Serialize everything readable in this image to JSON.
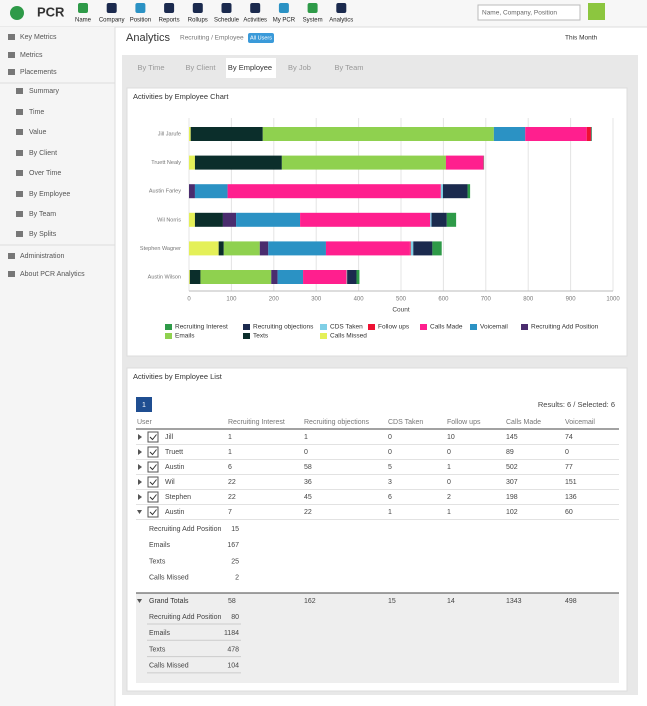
{
  "nav": {
    "logo": "PCR",
    "items": [
      "Name",
      "Company",
      "Position",
      "Reports",
      "Rollups",
      "Schedule",
      "Activities",
      "My PCR",
      "System",
      "Analytics"
    ],
    "search_placeholder": "Name, Company, Position"
  },
  "sidebar": {
    "items": [
      "Key Metrics",
      "Metrics",
      "Placements",
      "Summary",
      "Time",
      "Value",
      "By Client",
      "Over Time",
      "By Employee",
      "By Team",
      "By Splits",
      "Administration",
      "About PCR Analytics"
    ]
  },
  "header": {
    "title": "Analytics",
    "breadcrumb": "Recruiting / Employee",
    "badge": "All Users",
    "period": "This Month"
  },
  "tabs": [
    "By Time",
    "By Client",
    "By Employee",
    "By Job",
    "By Team"
  ],
  "chart_data": {
    "type": "bar",
    "orientation": "horizontal",
    "stacked": true,
    "title": "Activities by Employee Chart",
    "xlabel": "Count",
    "categories": [
      "Jill Jarufe",
      "Truett Nealy",
      "Austin Farley",
      "Wil Norris",
      "Stephen Wagner",
      "Austin Wilson"
    ],
    "series": [
      {
        "name": "Recruiting Interest",
        "color": "#2e9a48",
        "values": [
          1,
          1,
          6,
          22,
          22,
          7
        ]
      },
      {
        "name": "Recruiting objections",
        "color": "#1b2a4e",
        "values": [
          1,
          0,
          58,
          36,
          45,
          22
        ]
      },
      {
        "name": "CDS Taken",
        "color": "#7fcfe6",
        "values": [
          0,
          0,
          5,
          3,
          6,
          1
        ]
      },
      {
        "name": "Follow ups",
        "color": "#ee1133",
        "values": [
          10,
          0,
          1,
          0,
          2,
          1
        ]
      },
      {
        "name": "Calls Made",
        "color": "#ff1f8e",
        "values": [
          145,
          89,
          502,
          307,
          198,
          102
        ]
      },
      {
        "name": "Voicemail",
        "color": "#2b92c4",
        "values": [
          74,
          0,
          77,
          151,
          136,
          60
        ]
      },
      {
        "name": "Recruiting Add Position",
        "color": "#4a2c6e",
        "values": [
          0,
          0,
          14,
          31,
          20,
          15
        ]
      },
      {
        "name": "Emails",
        "color": "#8fd14f",
        "values": [
          545,
          387,
          0,
          0,
          85,
          167
        ]
      },
      {
        "name": "Texts",
        "color": "#0b2e2b",
        "values": [
          170,
          205,
          0,
          66,
          12,
          25
        ]
      },
      {
        "name": "Calls Missed",
        "color": "#e4f058",
        "values": [
          4,
          14,
          0,
          14,
          70,
          2
        ]
      }
    ],
    "xlim": [
      0,
      1000
    ],
    "xticks": [
      0,
      100,
      200,
      300,
      400,
      500,
      600,
      700,
      800,
      900,
      1000
    ],
    "grid": true,
    "legend": "bottom"
  },
  "list": {
    "title": "Activities by Employee List",
    "page": "1",
    "results": "Results: 6 / Selected: 6",
    "user_header": "User",
    "users": [
      "Jill",
      "Truett",
      "Austin",
      "Wil",
      "Stephen",
      "Austin"
    ],
    "totals_label": "Grand Totals",
    "totals": [
      58,
      162,
      15,
      14,
      1343,
      498,
      80,
      1184,
      478,
      104
    ]
  }
}
